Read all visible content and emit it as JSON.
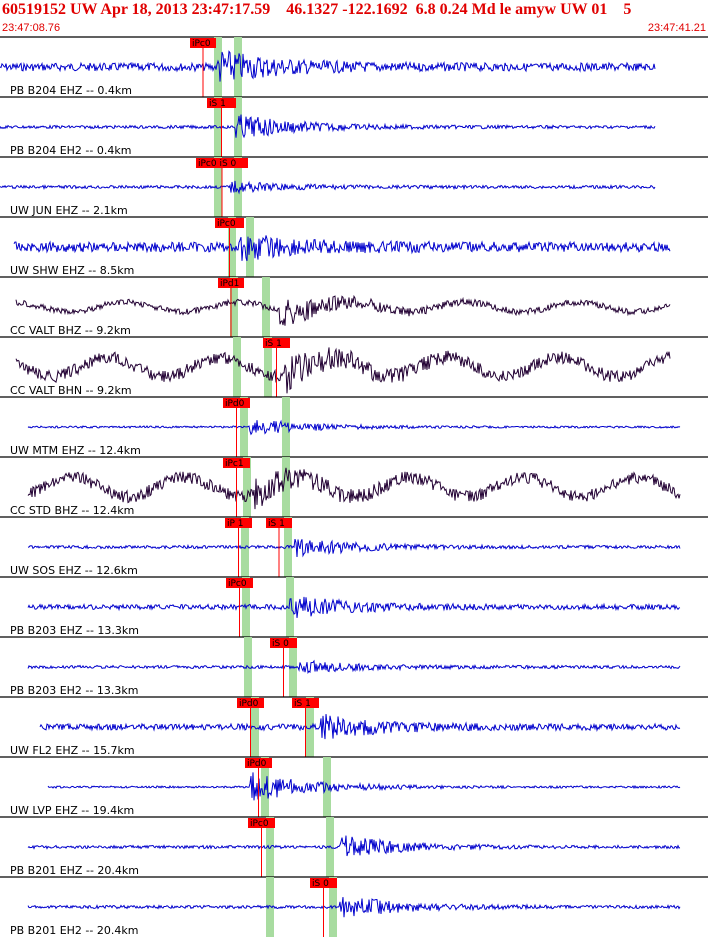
{
  "header": {
    "title": "60519152 UW Apr 18, 2013 23:47:17.59    46.1327 -122.1692  6.8 0.24 Md le amyw UW 01    5",
    "start_time": "23:47:08.76",
    "end_time": "23:47:41.21"
  },
  "colors": {
    "title": "#e00000",
    "trace_blue": "#0000cc",
    "trace_dark": "#220033",
    "pick_box": "#ff0000",
    "window_green": "#a8dca0",
    "separator": "#000000"
  },
  "traces": [
    {
      "label": "PB B204 EHZ -- 0.4km",
      "color": "blue",
      "picks": [
        {
          "text": "iPc0",
          "kind": "P"
        }
      ],
      "windows": 2
    },
    {
      "label": "PB B204 EH2 -- 0.4km",
      "color": "blue",
      "picks": [
        {
          "text": "iS 1",
          "kind": "S"
        }
      ],
      "windows": 2
    },
    {
      "label": "UW JUN EHZ -- 2.1km",
      "color": "blue",
      "picks": [
        {
          "text": "iPc0 iS 0",
          "kind": "P"
        }
      ],
      "windows": 2
    },
    {
      "label": "UW SHW EHZ -- 8.5km",
      "color": "blue",
      "picks": [
        {
          "text": "iPc0",
          "kind": "P"
        }
      ],
      "windows": 2
    },
    {
      "label": "CC VALT BHZ -- 9.2km",
      "color": "dark",
      "picks": [
        {
          "text": "iPd1",
          "kind": "P"
        }
      ],
      "windows": 2
    },
    {
      "label": "CC VALT BHN -- 9.2km",
      "color": "dark",
      "picks": [
        {
          "text": "iS 1",
          "kind": "S"
        }
      ],
      "windows": 2
    },
    {
      "label": "UW MTM EHZ -- 12.4km",
      "color": "blue",
      "picks": [
        {
          "text": "iPd0",
          "kind": "P"
        }
      ],
      "windows": 2
    },
    {
      "label": "CC STD BHZ -- 12.4km",
      "color": "dark",
      "picks": [
        {
          "text": "iPc1",
          "kind": "P"
        }
      ],
      "windows": 2
    },
    {
      "label": "UW SOS EHZ -- 12.6km",
      "color": "blue",
      "picks": [
        {
          "text": "iP 1",
          "kind": "P"
        },
        {
          "text": "iS 1",
          "kind": "S"
        }
      ],
      "windows": 2
    },
    {
      "label": "PB B203 EHZ -- 13.3km",
      "color": "blue",
      "picks": [
        {
          "text": "iPc0",
          "kind": "P"
        }
      ],
      "windows": 2
    },
    {
      "label": "PB B203 EH2 -- 13.3km",
      "color": "blue",
      "picks": [
        {
          "text": "iS 0",
          "kind": "S"
        }
      ],
      "windows": 2
    },
    {
      "label": "UW FL2 EHZ -- 15.7km",
      "color": "blue",
      "picks": [
        {
          "text": "iPd0",
          "kind": "P"
        },
        {
          "text": "iS 1",
          "kind": "S"
        }
      ],
      "windows": 2
    },
    {
      "label": "UW LVP EHZ -- 19.4km",
      "color": "blue",
      "picks": [
        {
          "text": "iPd0",
          "kind": "P"
        }
      ],
      "windows": 2
    },
    {
      "label": "PB B201 EHZ -- 20.4km",
      "color": "blue",
      "picks": [
        {
          "text": "iPc0",
          "kind": "P"
        }
      ],
      "windows": 2
    },
    {
      "label": "PB B201 EH2 -- 20.4km",
      "color": "blue",
      "picks": [
        {
          "text": "iS 0",
          "kind": "S"
        }
      ],
      "windows": 2
    }
  ]
}
